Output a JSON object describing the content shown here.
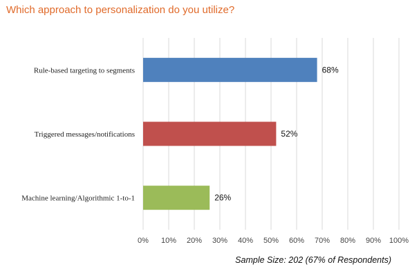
{
  "chart_data": {
    "type": "bar",
    "orientation": "horizontal",
    "title": "Which approach to personalization do you utilize?",
    "categories": [
      "Rule-based targeting to segments",
      "Triggered messages/notifications",
      "Machine learning/Algorithmic 1-to-1"
    ],
    "values": [
      68,
      52,
      26
    ],
    "value_labels": [
      "68%",
      "52%",
      "26%"
    ],
    "colors": [
      "#4f81bd",
      "#c0504d",
      "#9bbb59"
    ],
    "xlim": [
      0,
      100
    ],
    "x_ticks": [
      0,
      10,
      20,
      30,
      40,
      50,
      60,
      70,
      80,
      90,
      100
    ],
    "x_tick_labels": [
      "0%",
      "10%",
      "20%",
      "30%",
      "40%",
      "50%",
      "60%",
      "70%",
      "80%",
      "90%",
      "100%"
    ],
    "grid": true,
    "legend": "none"
  },
  "footnote": "Sample Size: 202 (67% of Respondents)"
}
